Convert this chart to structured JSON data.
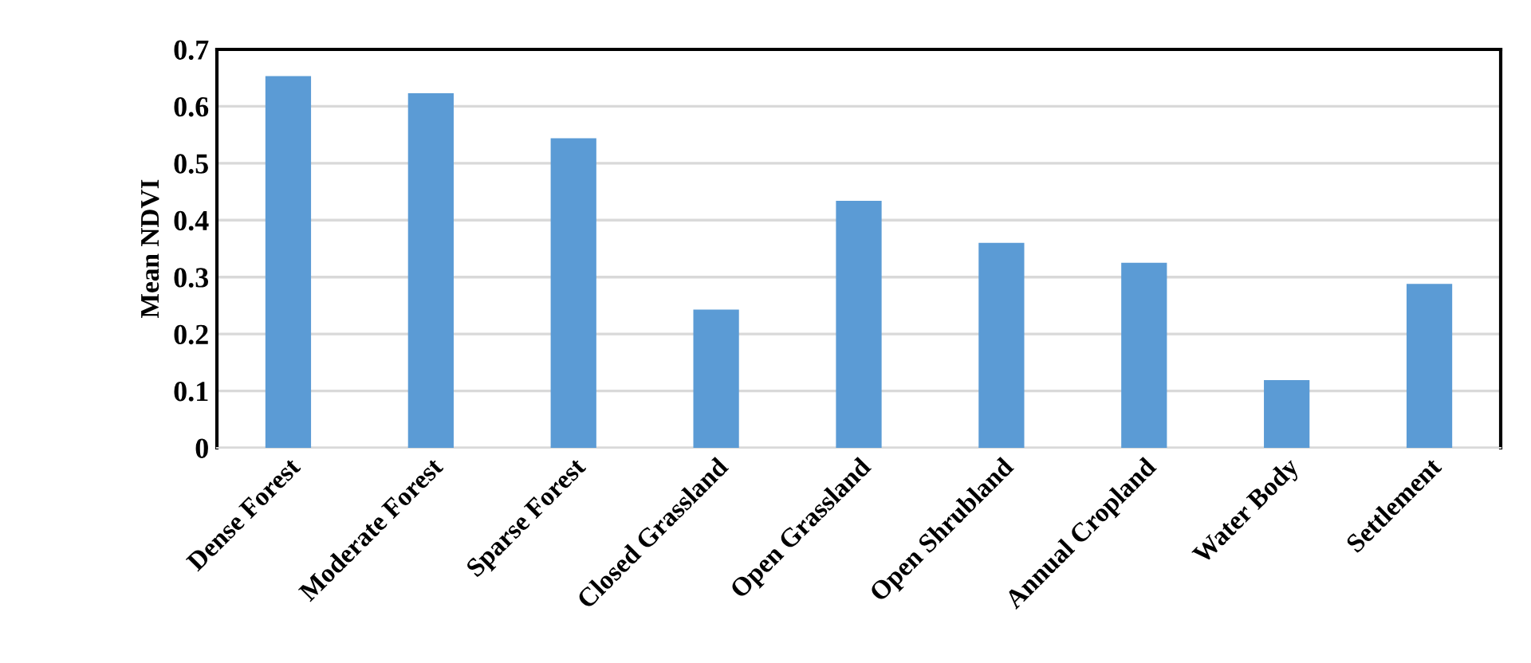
{
  "chart_data": {
    "type": "bar",
    "ylabel": "Mean NDVI",
    "categories": [
      "Dense Forest",
      "Moderate Forest",
      "Sparse Forest",
      "Closed Grassland",
      "Open Grassland",
      "Open Shrubland",
      "Annual Cropland",
      "Water Body",
      "Settlement"
    ],
    "values": [
      0.653,
      0.623,
      0.544,
      0.243,
      0.434,
      0.36,
      0.325,
      0.119,
      0.288
    ],
    "color": "#5b9bd5",
    "ylim": [
      0,
      0.7
    ],
    "yticks": [
      {
        "value": 0,
        "label": "0"
      },
      0.1,
      0.2,
      0.3,
      0.4,
      0.5,
      0.6,
      0.7
    ],
    "grid": "y",
    "legend": false
  }
}
